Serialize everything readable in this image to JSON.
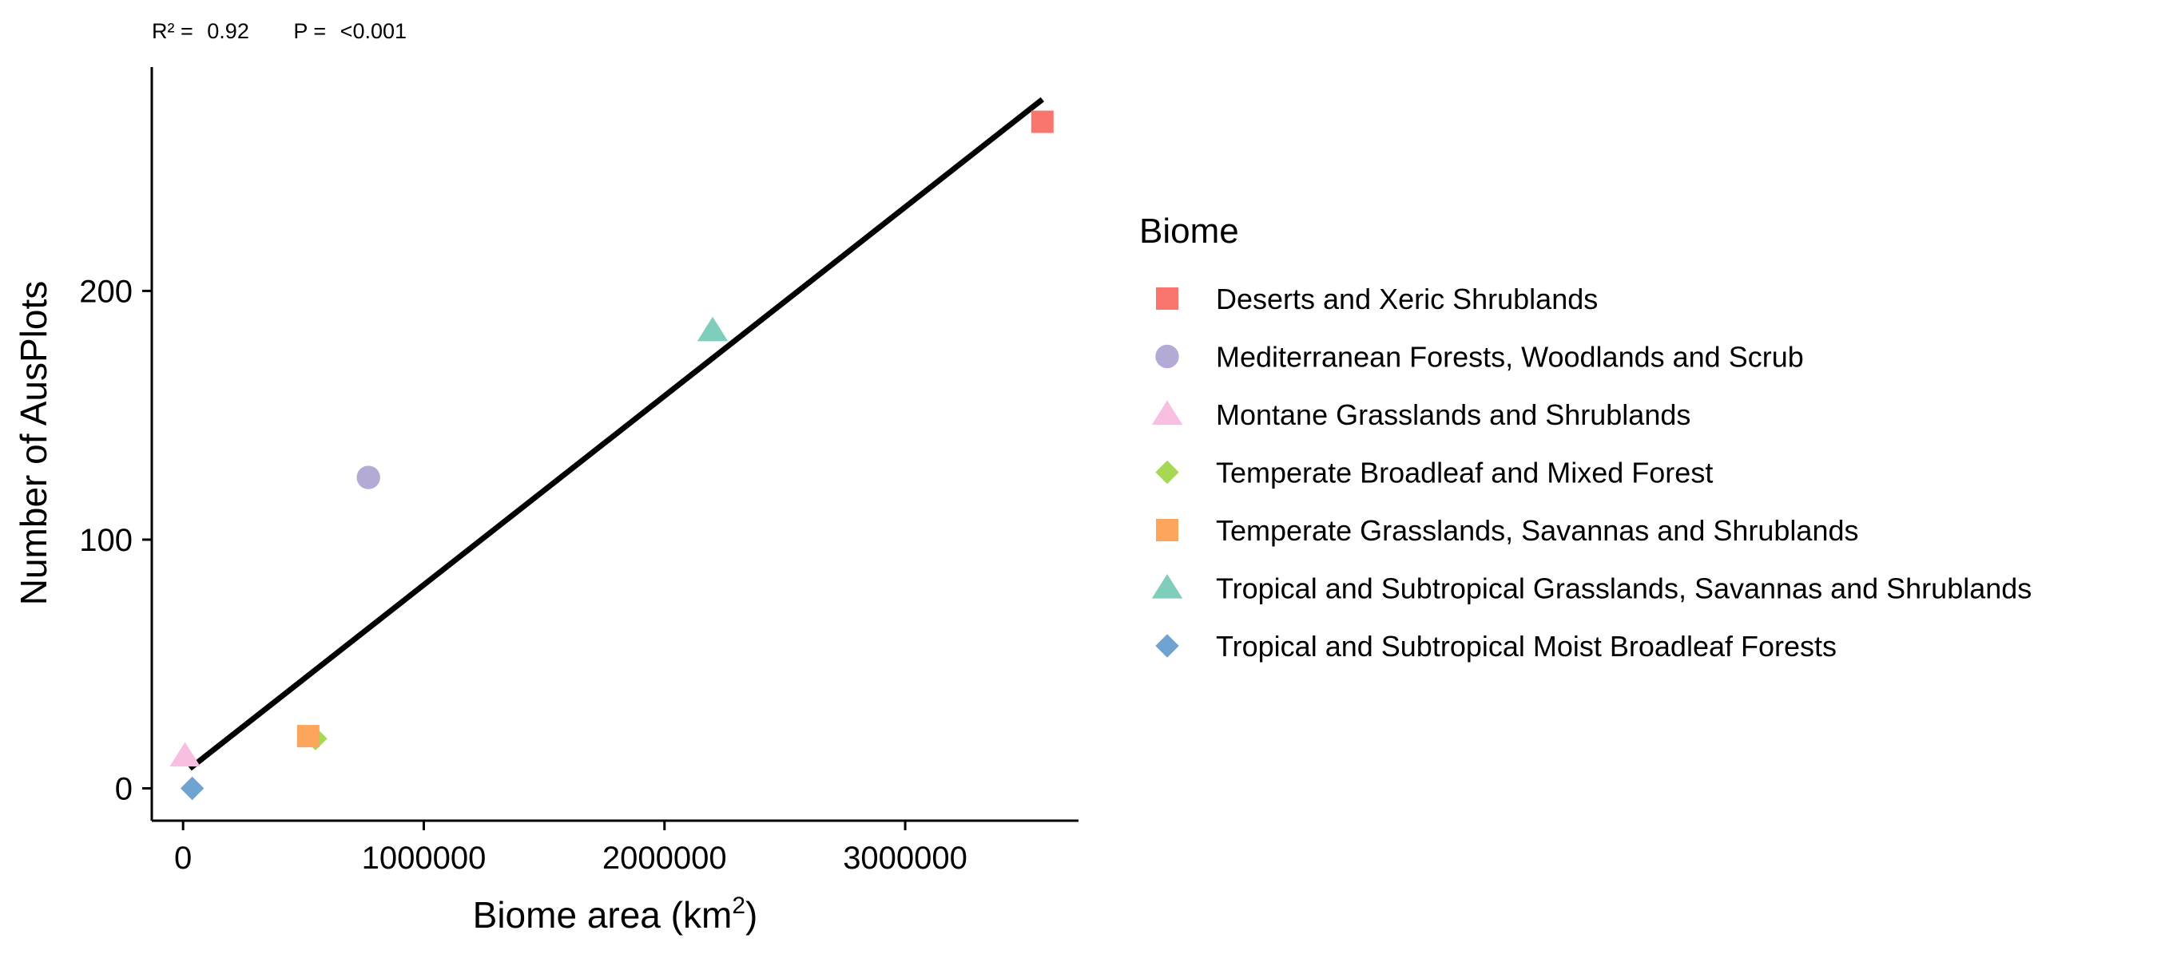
{
  "chart_data": {
    "type": "scatter",
    "stats": {
      "r2_label": "R² =",
      "r2_value": "0.92",
      "p_label": "P =",
      "p_value": "<0.001"
    },
    "xlabel": "Biome area (km",
    "xlabel_sup": "2",
    "xlabel_end": ")",
    "ylabel": "Number of AusPlots",
    "xlim": [
      -130000,
      3720000
    ],
    "ylim": [
      -13,
      290
    ],
    "x_ticks": [
      0,
      1000000,
      2000000,
      3000000
    ],
    "x_tick_labels": [
      "0",
      "1000000",
      "2000000",
      "3000000"
    ],
    "y_ticks": [
      0,
      100,
      200
    ],
    "y_tick_labels": [
      "0",
      "100",
      "200"
    ],
    "grid": false,
    "legend": {
      "title": "Biome",
      "placement": "right"
    },
    "trend_line": {
      "x": [
        28000,
        3570000
      ],
      "y": [
        8,
        277
      ],
      "color": "#000000"
    },
    "series": [
      {
        "name": "Deserts and Xeric Shrublands",
        "shape": "square",
        "color": "#F8766D",
        "points": [
          {
            "x": 3570000,
            "y": 268
          }
        ]
      },
      {
        "name": "Mediterranean Forests, Woodlands and Scrub",
        "shape": "circle",
        "color": "#B3ABD5",
        "points": [
          {
            "x": 770000,
            "y": 125
          }
        ]
      },
      {
        "name": "Montane Grasslands and Shrublands",
        "shape": "triangle",
        "color": "#F8BFE0",
        "points": [
          {
            "x": 8000,
            "y": 13
          }
        ]
      },
      {
        "name": "Temperate Broadleaf and Mixed Forest",
        "shape": "diamond",
        "color": "#A6D854",
        "points": [
          {
            "x": 550000,
            "y": 20
          }
        ]
      },
      {
        "name": "Temperate Grasslands, Savannas and Shrublands",
        "shape": "square",
        "color": "#FCA55D",
        "points": [
          {
            "x": 520000,
            "y": 21
          }
        ]
      },
      {
        "name": "Tropical and Subtropical Grasslands, Savannas and Shrublands",
        "shape": "triangle",
        "color": "#7FCDBB",
        "points": [
          {
            "x": 2200000,
            "y": 184
          }
        ]
      },
      {
        "name": "Tropical and Subtropical Moist Broadleaf Forests",
        "shape": "diamond",
        "color": "#6FA3D2",
        "points": [
          {
            "x": 38000,
            "y": 0
          }
        ]
      }
    ]
  }
}
